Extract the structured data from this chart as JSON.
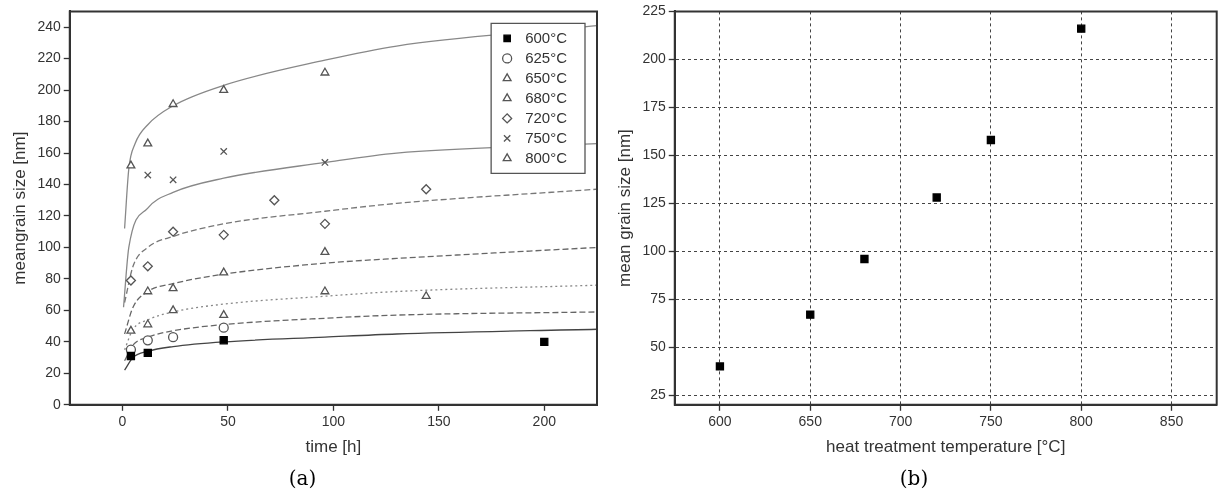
{
  "chart_data": [
    {
      "type": "scatter",
      "xlabel": "time [h]",
      "ylabel": "meangrain size [nm]",
      "xlim": [
        -25,
        225
      ],
      "xticks": [
        0,
        50,
        100,
        150,
        200
      ],
      "ylim": [
        0,
        250
      ],
      "yticks": [
        0,
        20,
        40,
        60,
        80,
        100,
        120,
        140,
        160,
        180,
        200,
        220,
        240
      ],
      "grid": false,
      "legend": "top right",
      "annotations": [
        "(a)"
      ],
      "series": [
        {
          "name": "600°C",
          "color": "#000000",
          "marker": "square",
          "x": [
            4,
            12,
            48,
            200
          ],
          "values": [
            31,
            33,
            41,
            40
          ]
        },
        {
          "name": "625°C",
          "color": "#555555",
          "marker": "circle",
          "x": [
            4,
            12,
            24,
            48
          ],
          "values": [
            35,
            41,
            43,
            49
          ]
        },
        {
          "name": "650°C",
          "color": "#555555",
          "marker": "triangle",
          "x": [
            4,
            12,
            24,
            48,
            96,
            144
          ],
          "values": [
            47,
            51,
            60,
            57,
            72,
            69
          ]
        },
        {
          "name": "680°C",
          "color": "#555555",
          "marker": "triangle",
          "x": [
            12,
            24,
            48,
            96
          ],
          "values": [
            72,
            74,
            84,
            97
          ]
        },
        {
          "name": "720°C",
          "color": "#555555",
          "marker": "diamond",
          "x": [
            4,
            12,
            24,
            48,
            72,
            96,
            144
          ],
          "values": [
            79,
            88,
            110,
            108,
            130,
            115,
            137
          ]
        },
        {
          "name": "750°C",
          "color": "#555555",
          "marker": "cross",
          "x": [
            12,
            24,
            48,
            96
          ],
          "values": [
            146,
            143,
            161,
            154
          ]
        },
        {
          "name": "800°C",
          "color": "#555555",
          "marker": "triangle",
          "x": [
            4,
            12,
            24,
            48,
            96
          ],
          "values": [
            152,
            166,
            191,
            200,
            211
          ]
        },
        {
          "type": "line",
          "color": "#444444",
          "line_style": "solid",
          "x": [
            1,
            5,
            12,
            24,
            48,
            96,
            130,
            225
          ],
          "values": [
            22,
            30,
            34,
            37,
            40,
            43,
            45,
            48
          ]
        },
        {
          "type": "line",
          "color": "#666666",
          "line_style": "dashed",
          "x": [
            1,
            5,
            12,
            24,
            48,
            96,
            130,
            225
          ],
          "values": [
            28,
            38,
            43,
            47,
            51,
            55,
            57,
            59
          ]
        },
        {
          "type": "line",
          "color": "#888888",
          "line_style": "dotted",
          "x": [
            1,
            5,
            12,
            24,
            48,
            96,
            130,
            225
          ],
          "values": [
            35,
            48,
            54,
            59,
            64,
            69,
            72,
            76
          ]
        },
        {
          "type": "line",
          "color": "#666666",
          "line_style": "dashed",
          "x": [
            1,
            5,
            12,
            24,
            48,
            96,
            130,
            225
          ],
          "values": [
            45,
            62,
            72,
            77,
            83,
            90,
            93,
            100
          ]
        },
        {
          "type": "line",
          "color": "#777777",
          "line_style": "dashed",
          "x": [
            1,
            5,
            12,
            24,
            48,
            96,
            130,
            225
          ],
          "values": [
            65,
            88,
            100,
            107,
            115,
            123,
            128,
            137
          ]
        },
        {
          "type": "line",
          "color": "#888888",
          "line_style": "solid",
          "x": [
            0.5,
            3,
            12,
            24,
            48,
            96,
            130,
            225
          ],
          "values": [
            62,
            100,
            125,
            135,
            144,
            154,
            160,
            166
          ]
        },
        {
          "type": "line",
          "color": "#888888",
          "line_style": "solid",
          "x": [
            1,
            3,
            6,
            12,
            24,
            48,
            96,
            130,
            225
          ],
          "values": [
            112,
            150,
            166,
            178,
            190,
            203,
            219,
            228,
            241
          ]
        }
      ]
    },
    {
      "type": "scatter",
      "xlabel": "heat treatment temperature [°C]",
      "ylabel": "mean grain size [nm]",
      "xlim": [
        575,
        875
      ],
      "xticks": [
        600,
        650,
        700,
        750,
        800,
        850
      ],
      "ylim": [
        20,
        225
      ],
      "yticks": [
        25,
        50,
        75,
        100,
        125,
        150,
        175,
        200,
        225
      ],
      "grid": true,
      "legend": false,
      "marker": "square",
      "annotations": [
        "(b)"
      ],
      "series": [
        {
          "color": "#000000",
          "x": [
            600,
            650,
            680,
            720,
            750,
            800
          ],
          "values": [
            40,
            67,
            96,
            128,
            158,
            216
          ]
        }
      ]
    }
  ]
}
